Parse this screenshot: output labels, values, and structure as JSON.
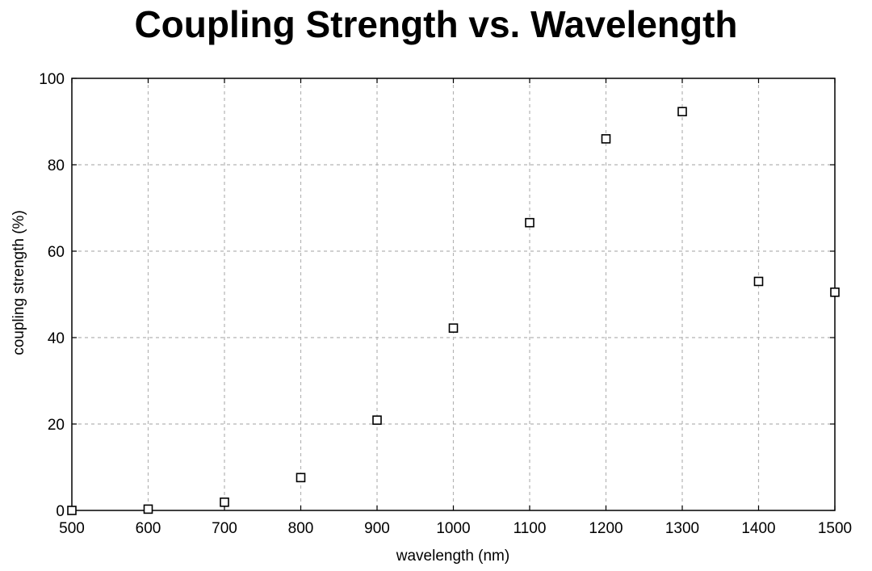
{
  "chart_data": {
    "type": "scatter",
    "title": "Coupling Strength vs. Wavelength",
    "xlabel": "wavelength (nm)",
    "ylabel": "coupling strength (%)",
    "xlim": [
      500,
      1500
    ],
    "ylim": [
      0,
      100
    ],
    "xticks": [
      500,
      600,
      700,
      800,
      900,
      1000,
      1100,
      1200,
      1300,
      1400,
      1500
    ],
    "yticks": [
      0,
      20,
      40,
      60,
      80,
      100
    ],
    "grid": true,
    "marker": "open-square",
    "series": [
      {
        "x": [
          500,
          600,
          700,
          800,
          900,
          1000,
          1100,
          1200,
          1300,
          1400,
          1500
        ],
        "y": [
          0,
          0.3,
          1.9,
          7.6,
          20.9,
          42.2,
          66.6,
          86.0,
          92.3,
          53.0,
          50.5
        ]
      }
    ]
  }
}
